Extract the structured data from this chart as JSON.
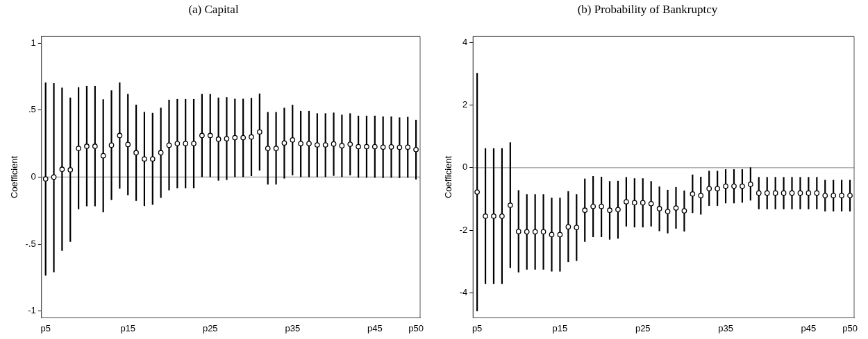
{
  "chart_data": [
    {
      "type": "scatter",
      "title": "(a) Capital",
      "ylabel": "Coefficient",
      "categories": [
        "p5",
        null,
        null,
        null,
        null,
        null,
        null,
        null,
        null,
        null,
        "p15",
        null,
        null,
        null,
        null,
        null,
        null,
        null,
        null,
        null,
        "p25",
        null,
        null,
        null,
        null,
        null,
        null,
        null,
        null,
        null,
        "p35",
        null,
        null,
        null,
        null,
        null,
        null,
        null,
        null,
        null,
        "p45",
        null,
        null,
        null,
        null,
        "p50"
      ],
      "values": [
        -0.014,
        0.0,
        0.058,
        0.054,
        0.214,
        0.23,
        0.23,
        0.159,
        0.238,
        0.31,
        0.243,
        0.182,
        0.135,
        0.135,
        0.182,
        0.238,
        0.25,
        0.25,
        0.25,
        0.31,
        0.31,
        0.283,
        0.286,
        0.294,
        0.294,
        0.299,
        0.337,
        0.214,
        0.214,
        0.254,
        0.277,
        0.25,
        0.25,
        0.24,
        0.24,
        0.247,
        0.234,
        0.245,
        0.227,
        0.227,
        0.227,
        0.223,
        0.225,
        0.222,
        0.223,
        0.205
      ],
      "errors": [
        [
          -0.735,
          0.706
        ],
        [
          -0.71,
          0.7
        ],
        [
          -0.55,
          0.667
        ],
        [
          -0.483,
          0.593
        ],
        [
          -0.24,
          0.67
        ],
        [
          -0.218,
          0.68
        ],
        [
          -0.218,
          0.68
        ],
        [
          -0.263,
          0.58
        ],
        [
          -0.171,
          0.647
        ],
        [
          -0.086,
          0.706
        ],
        [
          -0.135,
          0.62
        ],
        [
          -0.178,
          0.54
        ],
        [
          -0.216,
          0.486
        ],
        [
          -0.207,
          0.479
        ],
        [
          -0.155,
          0.517
        ],
        [
          -0.099,
          0.577
        ],
        [
          -0.083,
          0.582
        ],
        [
          -0.083,
          0.582
        ],
        [
          -0.083,
          0.582
        ],
        [
          0.0,
          0.62
        ],
        [
          0.0,
          0.62
        ],
        [
          -0.027,
          0.593
        ],
        [
          -0.022,
          0.596
        ],
        [
          0.0,
          0.584
        ],
        [
          0.0,
          0.584
        ],
        [
          0.007,
          0.591
        ],
        [
          0.049,
          0.623
        ],
        [
          -0.056,
          0.485
        ],
        [
          -0.056,
          0.485
        ],
        [
          -0.011,
          0.517
        ],
        [
          0.013,
          0.539
        ],
        [
          0.0,
          0.494
        ],
        [
          0.0,
          0.494
        ],
        [
          0.0,
          0.476
        ],
        [
          0.0,
          0.476
        ],
        [
          0.009,
          0.481
        ],
        [
          0.0,
          0.465
        ],
        [
          0.013,
          0.476
        ],
        [
          -0.005,
          0.458
        ],
        [
          -0.005,
          0.458
        ],
        [
          -0.005,
          0.458
        ],
        [
          -0.007,
          0.452
        ],
        [
          -0.005,
          0.452
        ],
        [
          -0.007,
          0.445
        ],
        [
          -0.005,
          0.449
        ],
        [
          -0.018,
          0.427
        ]
      ],
      "color": "#000000",
      "marker": "circle",
      "grid": false,
      "legend": false,
      "ylim": [
        -1.05,
        1.05
      ],
      "yticks": [
        -1,
        {
          "value": -0.5,
          "label": "-.5"
        },
        0,
        {
          "value": 0.5,
          "label": ".5"
        },
        1
      ],
      "ref_lines": [
        {
          "axis": "y",
          "value": 0,
          "color": "#999999"
        }
      ]
    },
    {
      "type": "scatter",
      "title": "(b) Probability of Bankruptcy",
      "ylabel": "Coefficient",
      "categories": [
        "p5",
        null,
        null,
        null,
        null,
        null,
        null,
        null,
        null,
        null,
        "p15",
        null,
        null,
        null,
        null,
        null,
        null,
        null,
        null,
        null,
        "p25",
        null,
        null,
        null,
        null,
        null,
        null,
        null,
        null,
        null,
        "p35",
        null,
        null,
        null,
        null,
        null,
        null,
        null,
        null,
        null,
        "p45",
        null,
        null,
        null,
        null,
        "p50"
      ],
      "values": [
        -0.78,
        -1.55,
        -1.55,
        -1.55,
        -1.2,
        -2.04,
        -2.05,
        -2.05,
        -2.05,
        -2.14,
        -2.14,
        -1.89,
        -1.91,
        -1.36,
        -1.24,
        -1.24,
        -1.36,
        -1.34,
        -1.09,
        -1.12,
        -1.12,
        -1.15,
        -1.31,
        -1.4,
        -1.29,
        -1.38,
        -0.84,
        -0.89,
        -0.67,
        -0.67,
        -0.59,
        -0.59,
        -0.59,
        -0.53,
        -0.81,
        -0.81,
        -0.81,
        -0.81,
        -0.81,
        -0.81,
        -0.81,
        -0.81,
        -0.89,
        -0.89,
        -0.89,
        -0.89
      ],
      "errors": [
        [
          -4.59,
          3.03
        ],
        [
          -3.72,
          0.62
        ],
        [
          -3.72,
          0.62
        ],
        [
          -3.72,
          0.62
        ],
        [
          -3.21,
          0.81
        ],
        [
          -3.35,
          -0.72
        ],
        [
          -3.26,
          -0.85
        ],
        [
          -3.26,
          -0.85
        ],
        [
          -3.26,
          -0.85
        ],
        [
          -3.32,
          -0.96
        ],
        [
          -3.32,
          -0.96
        ],
        [
          -3.02,
          -0.75
        ],
        [
          -2.98,
          -0.85
        ],
        [
          -2.37,
          -0.35
        ],
        [
          -2.22,
          -0.27
        ],
        [
          -2.22,
          -0.29
        ],
        [
          -2.3,
          -0.43
        ],
        [
          -2.27,
          -0.42
        ],
        [
          -1.88,
          -0.3
        ],
        [
          -1.91,
          -0.34
        ],
        [
          -1.91,
          -0.34
        ],
        [
          -1.88,
          -0.43
        ],
        [
          -2.03,
          -0.6
        ],
        [
          -2.1,
          -0.71
        ],
        [
          -1.95,
          -0.62
        ],
        [
          -2.04,
          -0.73
        ],
        [
          -1.45,
          -0.22
        ],
        [
          -1.5,
          -0.29
        ],
        [
          -1.22,
          -0.1
        ],
        [
          -1.22,
          -0.1
        ],
        [
          -1.14,
          -0.05
        ],
        [
          -1.14,
          -0.05
        ],
        [
          -1.12,
          -0.05
        ],
        [
          -1.05,
          0.01
        ],
        [
          -1.33,
          -0.3
        ],
        [
          -1.33,
          -0.3
        ],
        [
          -1.33,
          -0.3
        ],
        [
          -1.33,
          -0.3
        ],
        [
          -1.33,
          -0.3
        ],
        [
          -1.33,
          -0.3
        ],
        [
          -1.33,
          -0.3
        ],
        [
          -1.33,
          -0.3
        ],
        [
          -1.4,
          -0.39
        ],
        [
          -1.4,
          -0.39
        ],
        [
          -1.4,
          -0.39
        ],
        [
          -1.4,
          -0.39
        ]
      ],
      "color": "#000000",
      "marker": "circle",
      "grid": false,
      "legend": false,
      "ylim": [
        -4.8,
        4.2
      ],
      "yticks": [
        -4,
        -2,
        0,
        2,
        4
      ],
      "ref_lines": [
        {
          "axis": "y",
          "value": 0,
          "color": "#999999"
        }
      ]
    }
  ]
}
